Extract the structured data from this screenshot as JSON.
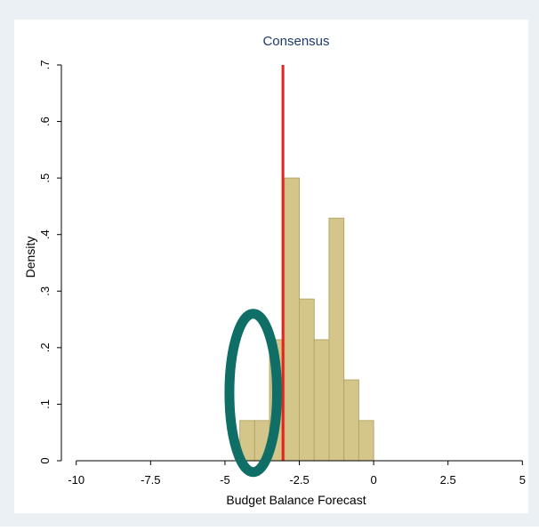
{
  "chart_data": {
    "type": "bar",
    "title": "Consensus",
    "xlabel": "Budget Balance Forecast",
    "ylabel": "Density",
    "xlim": [
      -10.5,
      5.2
    ],
    "ylim": [
      0,
      0.7
    ],
    "x_ticks": [
      -10,
      -7.5,
      -5,
      -2.5,
      0,
      2.5,
      5
    ],
    "x_tick_labels": [
      "-10",
      "-7.5",
      "-5",
      "-2.5",
      "0",
      "2.5",
      "5"
    ],
    "y_ticks": [
      0,
      0.1,
      0.2,
      0.3,
      0.4,
      0.5,
      0.6,
      0.7
    ],
    "y_tick_labels": [
      "0",
      ".1",
      ".2",
      ".3",
      ".4",
      ".5",
      ".6",
      ".7"
    ],
    "bin_width": 0.5,
    "bins": [
      {
        "x0": -4.5,
        "value": 0.071
      },
      {
        "x0": -4.0,
        "value": 0.071
      },
      {
        "x0": -3.5,
        "value": 0.214
      },
      {
        "x0": -3.0,
        "value": 0.5
      },
      {
        "x0": -2.5,
        "value": 0.286
      },
      {
        "x0": -2.0,
        "value": 0.214
      },
      {
        "x0": -1.5,
        "value": 0.429
      },
      {
        "x0": -1.0,
        "value": 0.143
      },
      {
        "x0": -0.5,
        "value": 0.071
      }
    ],
    "reference_line": {
      "x": -3.05,
      "color": "#e8221e"
    },
    "highlight_ellipse": {
      "cx": -4.05,
      "cy": 0.12,
      "rx": 0.8,
      "ry": 0.14,
      "color": "#0f6e66"
    },
    "colors": {
      "outer_background": "#eaf0f3",
      "plot_background": "#ffffff",
      "bar_fill": "#d4c68a",
      "bar_stroke": "#b4a866",
      "title_color": "#1c3a6e",
      "axis_color": "#000000"
    },
    "grid": false,
    "legend": "none"
  }
}
